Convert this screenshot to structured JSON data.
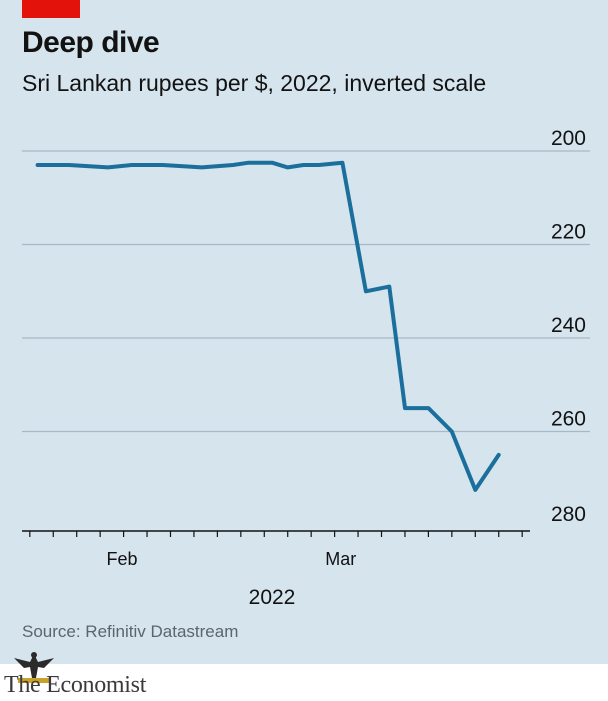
{
  "header": {
    "title": "Deep dive",
    "subtitle": "Sri Lankan rupees per $, 2022, inverted scale"
  },
  "footer": {
    "source": "Source: Refinitiv Datastream",
    "brand": "The Economist"
  },
  "colors": {
    "background": "#d5e4ed",
    "line": "#1b6f9c",
    "accent": "#e3120b",
    "grid": "#a9b9c4"
  },
  "chart_data": {
    "type": "line",
    "title": "Deep dive",
    "subtitle": "Sri Lankan rupees per $, 2022, inverted scale",
    "xlabel": "2022",
    "ylabel": "",
    "y_inverted": true,
    "ylim": [
      200,
      280
    ],
    "y_ticks": [
      200,
      220,
      240,
      260,
      280
    ],
    "x_range": [
      "2022-01-21",
      "2022-03-27"
    ],
    "x_tick_labels": [
      {
        "label": "Feb",
        "date": "2022-02-01"
      },
      {
        "label": "Mar",
        "date": "2022-03-01"
      }
    ],
    "x_minor_ticks": [
      "2022-01-22",
      "2022-01-25",
      "2022-01-28",
      "2022-01-31",
      "2022-02-03",
      "2022-02-06",
      "2022-02-09",
      "2022-02-12",
      "2022-02-15",
      "2022-02-18",
      "2022-02-21",
      "2022-02-24",
      "2022-02-27",
      "2022-03-02",
      "2022-03-05",
      "2022-03-08",
      "2022-03-11",
      "2022-03-14",
      "2022-03-17",
      "2022-03-20",
      "2022-03-23",
      "2022-03-26"
    ],
    "grid": "horizontal",
    "series": [
      {
        "x": [
          "2022-01-23",
          "2022-01-27",
          "2022-02-01",
          "2022-02-04",
          "2022-02-08",
          "2022-02-13",
          "2022-02-17",
          "2022-02-19",
          "2022-02-22",
          "2022-02-24",
          "2022-02-26",
          "2022-02-28",
          "2022-03-03",
          "2022-03-06",
          "2022-03-09",
          "2022-03-11",
          "2022-03-14",
          "2022-03-17",
          "2022-03-20",
          "2022-03-23"
        ],
        "values": [
          203,
          203,
          203.5,
          203,
          203,
          203.5,
          203,
          202.5,
          202.5,
          203.5,
          203,
          203,
          202.5,
          230,
          229,
          255,
          255,
          260,
          272.5,
          265
        ]
      }
    ]
  }
}
